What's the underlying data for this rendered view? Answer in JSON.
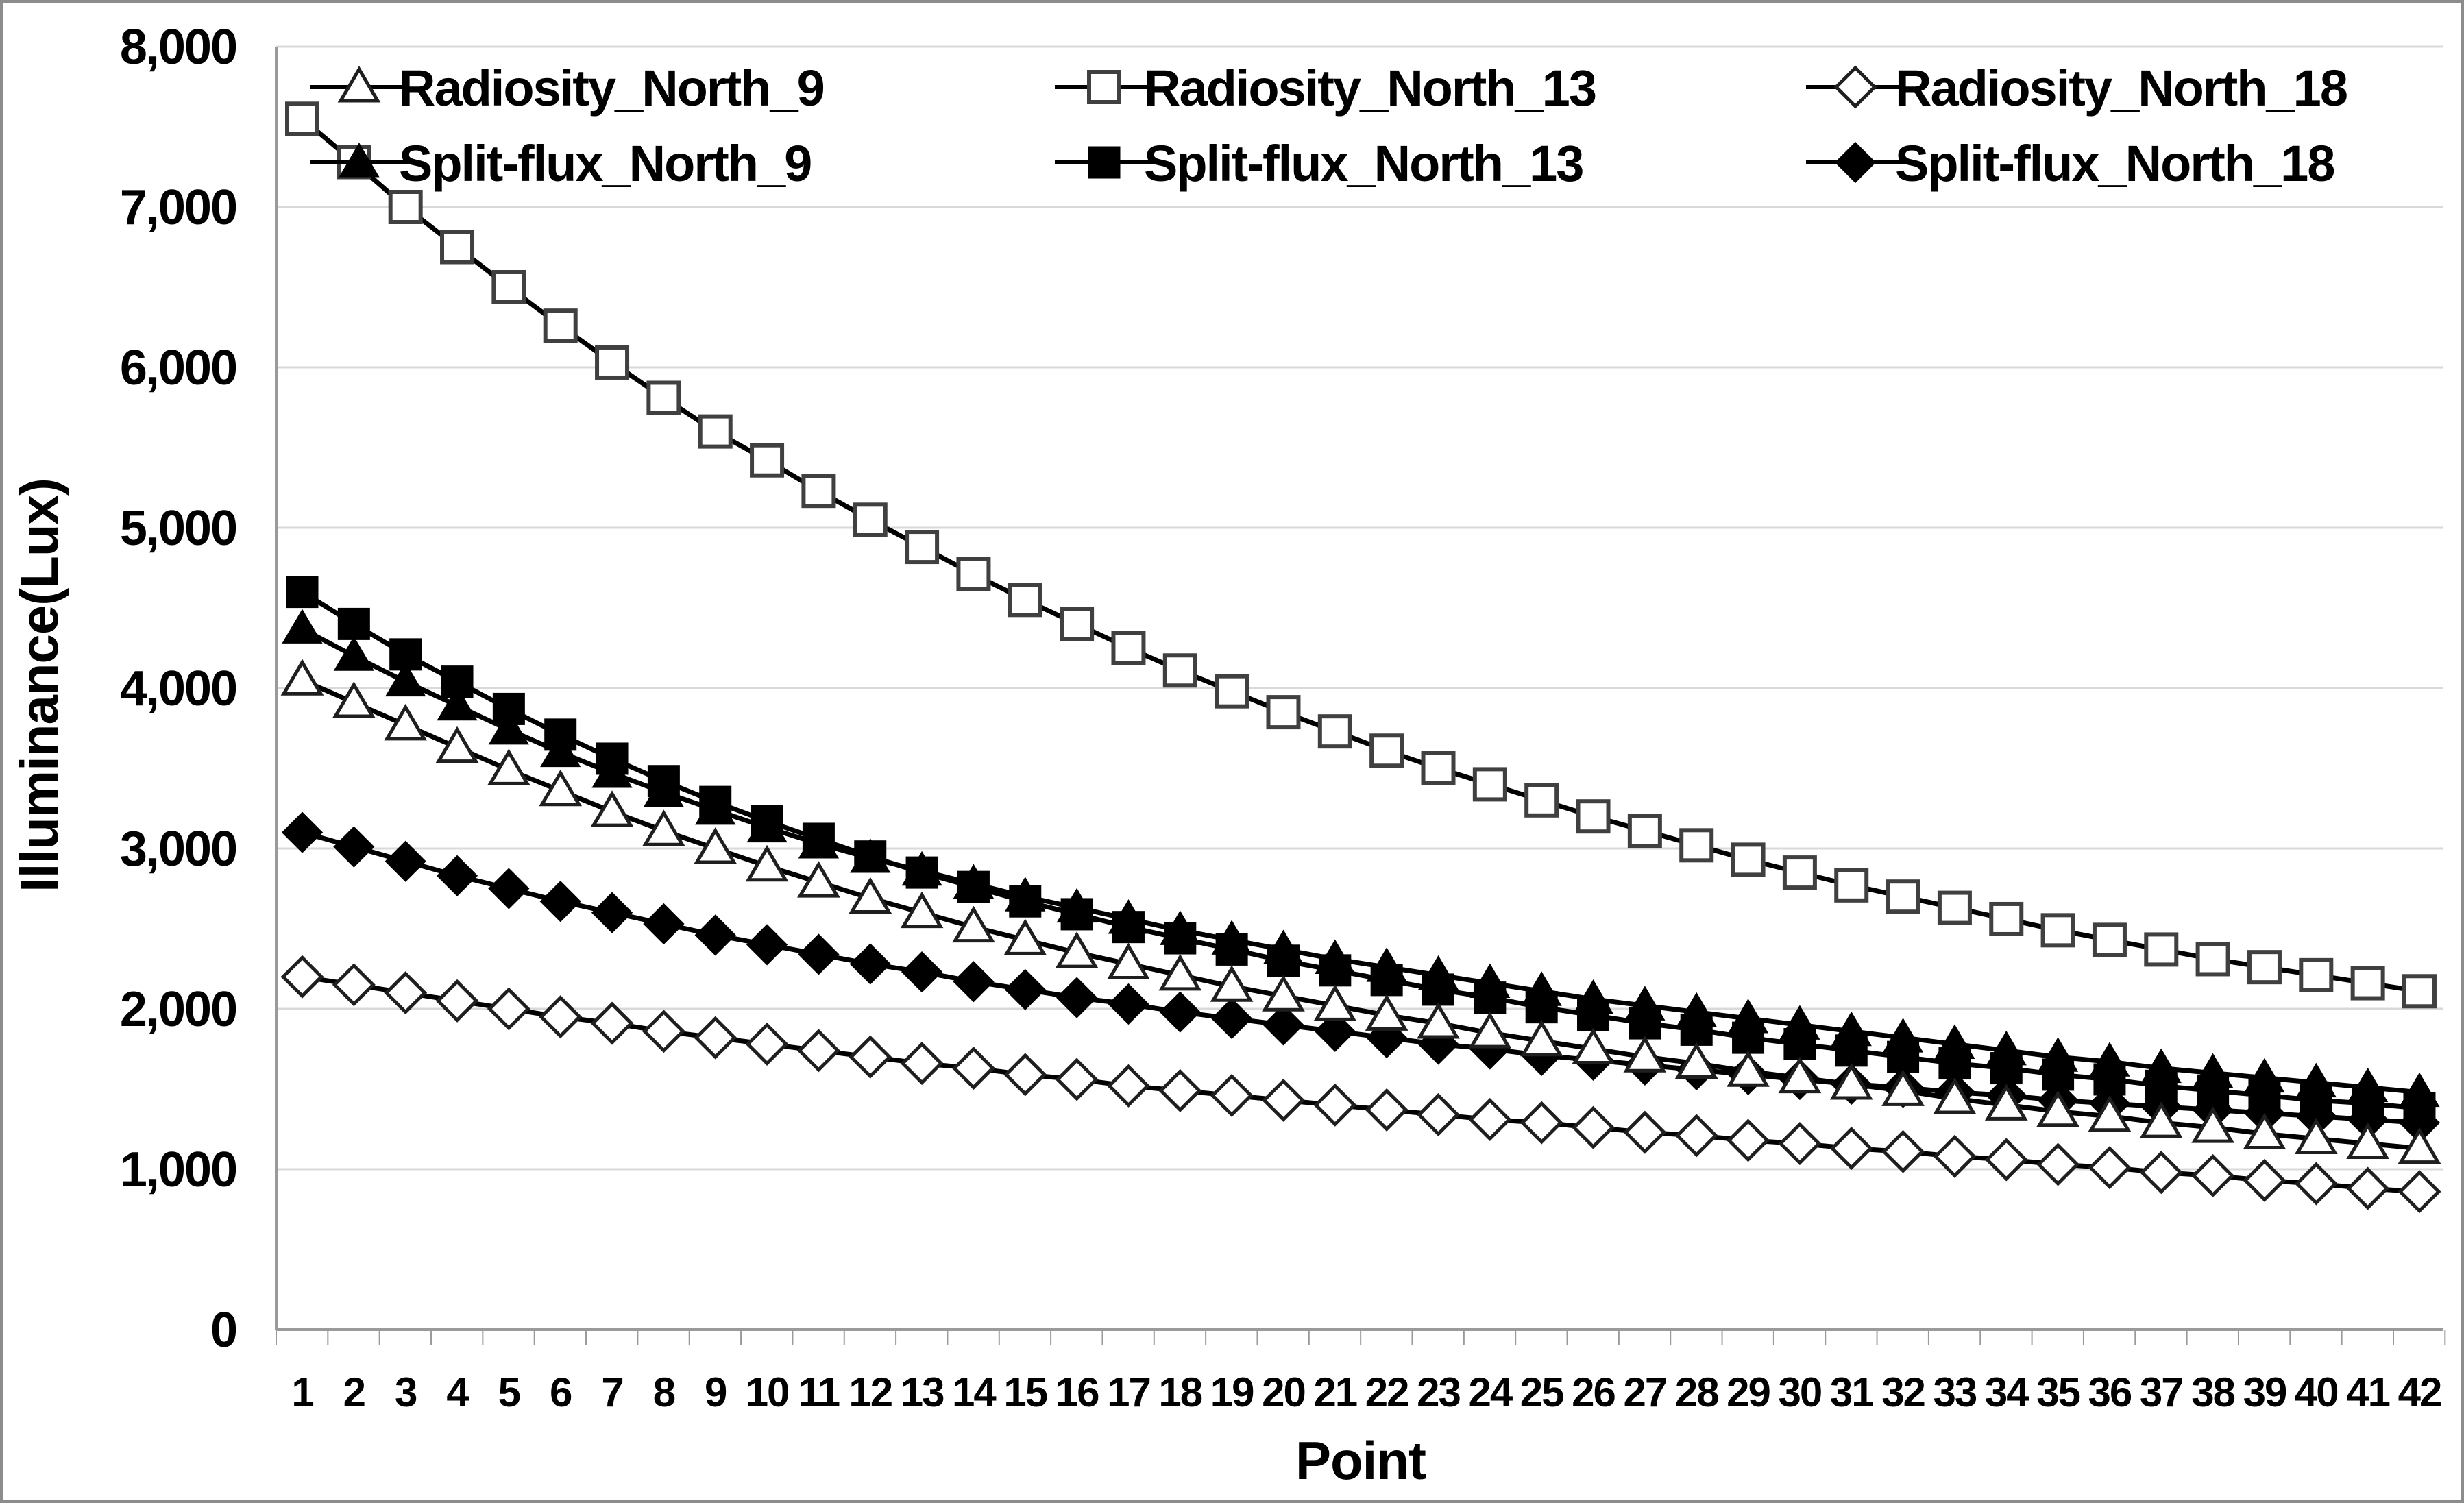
{
  "figure": {
    "background_color": "#ffffff",
    "border_color": "#8c8c8c",
    "line_color": "#000000",
    "gridline_color": "#d9d9d9",
    "axis_color": "#9a9a9a"
  },
  "y_axis": {
    "title": "Illuminance(Lux)",
    "tick_labels": [
      "0",
      "1,000",
      "2,000",
      "3,000",
      "4,000",
      "5,000",
      "6,000",
      "7,000",
      "8,000"
    ],
    "tick_values": [
      0,
      1000,
      2000,
      3000,
      4000,
      5000,
      6000,
      7000,
      8000
    ],
    "min": 0,
    "max": 8000
  },
  "x_axis": {
    "title": "Point",
    "tick_labels": [
      "1",
      "2",
      "3",
      "4",
      "5",
      "6",
      "7",
      "8",
      "9",
      "10",
      "11",
      "12",
      "13",
      "14",
      "15",
      "16",
      "17",
      "18",
      "19",
      "20",
      "21",
      "22",
      "23",
      "24",
      "25",
      "26",
      "27",
      "28",
      "29",
      "30",
      "31",
      "32",
      "33",
      "34",
      "35",
      "36",
      "37",
      "38",
      "39",
      "40",
      "41",
      "42"
    ]
  },
  "legend": {
    "position": "top-inside",
    "rows": 2,
    "columns": 3,
    "items": [
      {
        "label": "Radiosity_North_9",
        "marker": "triangle",
        "filled": false
      },
      {
        "label": "Radiosity_North_13",
        "marker": "square",
        "filled": false
      },
      {
        "label": "Radiosity_North_18",
        "marker": "diamond",
        "filled": false
      },
      {
        "label": "Split-flux_North_9",
        "marker": "triangle",
        "filled": true
      },
      {
        "label": "Split-flux_North_13",
        "marker": "square",
        "filled": true
      },
      {
        "label": "Split-flux_North_18",
        "marker": "diamond",
        "filled": true
      }
    ]
  },
  "chart_data": {
    "type": "line",
    "title": "",
    "xlabel": "Point",
    "ylabel": "Illuminance(Lux)",
    "ylim": [
      0,
      8000
    ],
    "grid": "horizontal",
    "legend_position": "top-inside",
    "x": [
      1,
      2,
      3,
      4,
      5,
      6,
      7,
      8,
      9,
      10,
      11,
      12,
      13,
      14,
      15,
      16,
      17,
      18,
      19,
      20,
      21,
      22,
      23,
      24,
      25,
      26,
      27,
      28,
      29,
      30,
      31,
      32,
      33,
      34,
      35,
      36,
      37,
      38,
      39,
      40,
      41,
      42
    ],
    "series": [
      {
        "name": "Radiosity_North_9",
        "marker": "triangle",
        "filled": false,
        "values": [
          4050,
          3910,
          3770,
          3630,
          3490,
          3360,
          3230,
          3110,
          3000,
          2890,
          2790,
          2690,
          2600,
          2510,
          2430,
          2350,
          2280,
          2210,
          2140,
          2080,
          2020,
          1960,
          1910,
          1850,
          1800,
          1750,
          1700,
          1660,
          1610,
          1570,
          1530,
          1490,
          1440,
          1400,
          1360,
          1330,
          1290,
          1260,
          1220,
          1190,
          1160,
          1130
        ]
      },
      {
        "name": "Radiosity_North_13",
        "marker": "square",
        "filled": false,
        "values": [
          7550,
          7280,
          7000,
          6750,
          6500,
          6260,
          6030,
          5810,
          5600,
          5420,
          5230,
          5050,
          4880,
          4710,
          4550,
          4400,
          4250,
          4110,
          3980,
          3850,
          3730,
          3610,
          3500,
          3400,
          3300,
          3200,
          3110,
          3020,
          2930,
          2850,
          2770,
          2700,
          2630,
          2560,
          2490,
          2430,
          2370,
          2310,
          2260,
          2210,
          2160,
          2110
        ]
      },
      {
        "name": "Radiosity_North_18",
        "marker": "diamond",
        "filled": false,
        "values": [
          2200,
          2150,
          2100,
          2050,
          2000,
          1950,
          1910,
          1860,
          1820,
          1780,
          1740,
          1700,
          1660,
          1630,
          1590,
          1560,
          1520,
          1490,
          1460,
          1430,
          1400,
          1370,
          1340,
          1310,
          1290,
          1260,
          1230,
          1210,
          1180,
          1160,
          1130,
          1110,
          1080,
          1060,
          1030,
          1010,
          980,
          960,
          930,
          910,
          880,
          860
        ]
      },
      {
        "name": "Split-flux_North_9",
        "marker": "triangle",
        "filled": true,
        "values": [
          4370,
          4200,
          4040,
          3890,
          3740,
          3600,
          3470,
          3350,
          3240,
          3130,
          3030,
          2940,
          2860,
          2780,
          2700,
          2630,
          2560,
          2490,
          2430,
          2370,
          2310,
          2260,
          2210,
          2160,
          2110,
          2060,
          2020,
          1980,
          1940,
          1900,
          1860,
          1820,
          1780,
          1740,
          1700,
          1670,
          1630,
          1600,
          1570,
          1540,
          1510,
          1480
        ]
      },
      {
        "name": "Split-flux_North_13",
        "marker": "square",
        "filled": true,
        "values": [
          4600,
          4400,
          4210,
          4040,
          3870,
          3710,
          3560,
          3420,
          3290,
          3170,
          3060,
          2950,
          2850,
          2760,
          2670,
          2590,
          2510,
          2440,
          2370,
          2300,
          2240,
          2180,
          2120,
          2070,
          2010,
          1960,
          1910,
          1870,
          1820,
          1780,
          1740,
          1700,
          1660,
          1630,
          1590,
          1560,
          1520,
          1490,
          1460,
          1430,
          1410,
          1380
        ]
      },
      {
        "name": "Split-flux_North_18",
        "marker": "diamond",
        "filled": true,
        "values": [
          3100,
          3010,
          2920,
          2830,
          2750,
          2670,
          2600,
          2530,
          2460,
          2400,
          2340,
          2280,
          2230,
          2170,
          2120,
          2070,
          2030,
          1980,
          1940,
          1900,
          1860,
          1820,
          1780,
          1750,
          1710,
          1680,
          1650,
          1620,
          1590,
          1560,
          1530,
          1510,
          1480,
          1460,
          1430,
          1410,
          1390,
          1370,
          1350,
          1330,
          1310,
          1290
        ]
      }
    ]
  }
}
